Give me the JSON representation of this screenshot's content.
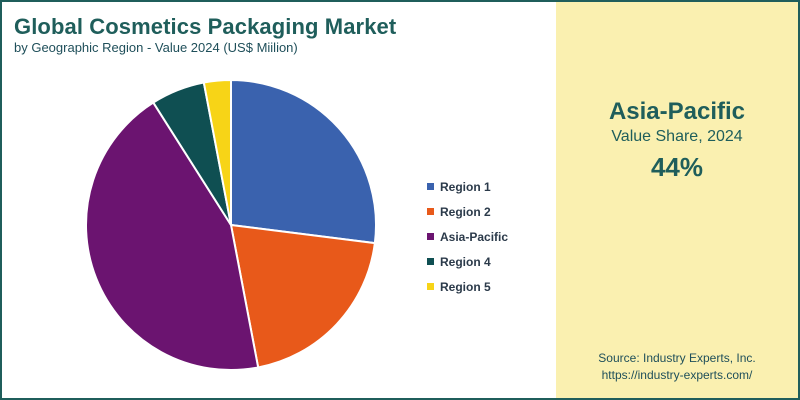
{
  "header": {
    "title": "Global Cosmetics Packaging Market",
    "subtitle": "by Geographic Region - Value 2024 (US$ Miilion)"
  },
  "highlight": {
    "region": "Asia-Pacific",
    "label": "Value Share, 2024",
    "value": "44%"
  },
  "source": {
    "line1": "Source: Industry Experts, Inc.",
    "line2": "https://industry-experts.com/"
  },
  "colors": {
    "frame": "#1f5e5b",
    "panel": "#faf0b0",
    "title": "#1f5e5b"
  },
  "chart_data": {
    "type": "pie",
    "title": "Global Cosmetics Packaging Market",
    "categories": [
      "Region 1",
      "Region 2",
      "Asia-Pacific",
      "Region 4",
      "Region 5"
    ],
    "values": [
      27,
      20,
      44,
      6,
      3
    ],
    "colors": [
      "#3a62ae",
      "#e8591a",
      "#6b1470",
      "#0f4f52",
      "#f7d417"
    ],
    "legend_position": "right",
    "start_angle_deg": 0,
    "direction": "clockwise"
  }
}
